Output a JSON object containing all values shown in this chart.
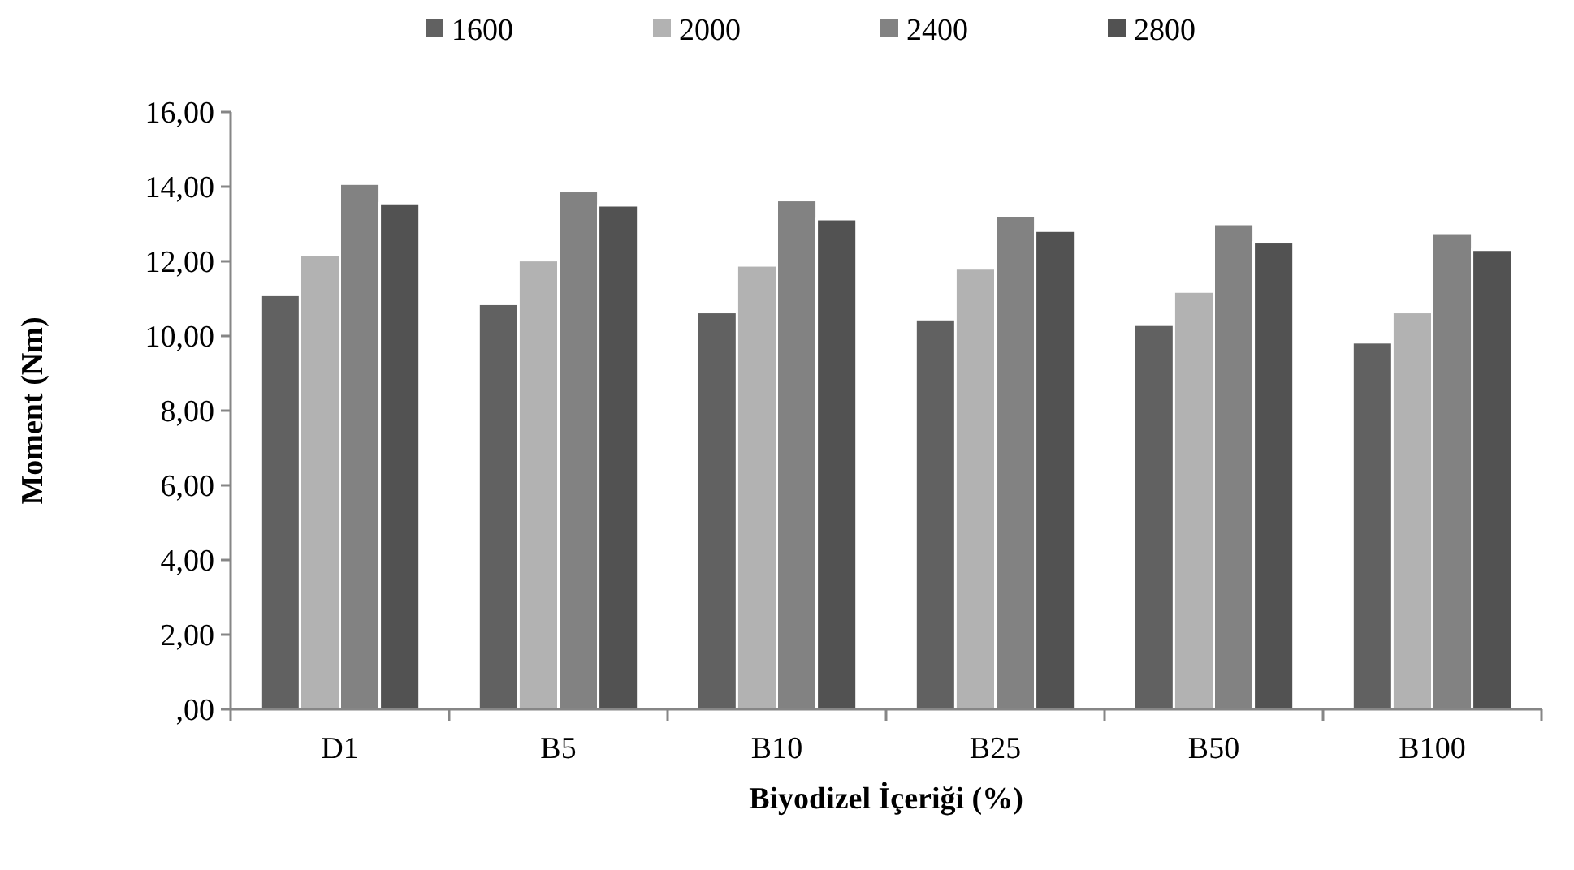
{
  "chart_data": {
    "type": "bar",
    "xlabel": "Biyodizel İçeriği (%)",
    "ylabel": "Moment (Nm)",
    "categories": [
      "D1",
      "B5",
      "B10",
      "B25",
      "B50",
      "B100"
    ],
    "series": [
      {
        "name": "1600",
        "color": "#616161",
        "values": [
          11.1,
          10.86,
          10.64,
          10.45,
          10.3,
          9.83
        ]
      },
      {
        "name": "2000",
        "color": "#b2b2b2",
        "values": [
          12.18,
          12.03,
          11.89,
          11.81,
          11.19,
          10.64
        ]
      },
      {
        "name": "2400",
        "color": "#828282",
        "values": [
          14.08,
          13.88,
          13.64,
          13.22,
          13.0,
          12.76
        ]
      },
      {
        "name": "2800",
        "color": "#525252",
        "values": [
          13.56,
          13.5,
          13.13,
          12.82,
          12.51,
          12.31
        ]
      }
    ],
    "ylim": [
      0,
      16
    ],
    "yticks": [
      {
        "value": 0,
        "label": ",00"
      },
      {
        "value": 2,
        "label": "2,00"
      },
      {
        "value": 4,
        "label": "4,00"
      },
      {
        "value": 6,
        "label": "6,00"
      },
      {
        "value": 8,
        "label": "8,00"
      },
      {
        "value": 10,
        "label": "10,00"
      },
      {
        "value": 12,
        "label": "12,00"
      },
      {
        "value": 14,
        "label": "14,00"
      },
      {
        "value": 16,
        "label": "16,00"
      }
    ],
    "grid": false,
    "legend": "top"
  }
}
